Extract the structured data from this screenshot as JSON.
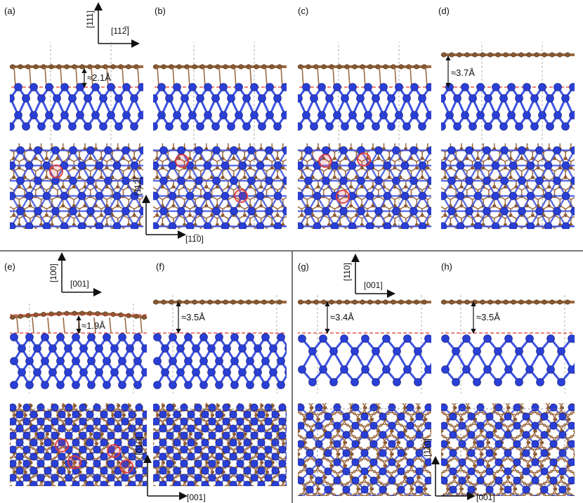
{
  "panels": [
    {
      "id": "a",
      "label": "(a)",
      "gap_label": "≈2.1Å",
      "flat": false,
      "sites": [
        [
          80,
          244
        ]
      ]
    },
    {
      "id": "b",
      "label": "(b)",
      "gap_label": "",
      "flat": false,
      "sites": [
        [
          259,
          229
        ],
        [
          343,
          279
        ]
      ]
    },
    {
      "id": "c",
      "label": "(c)",
      "gap_label": "",
      "flat": false,
      "sites": [
        [
          463,
          229
        ],
        [
          518,
          227
        ],
        [
          488,
          280
        ]
      ]
    },
    {
      "id": "d",
      "label": "(d)",
      "gap_label": "≈3.7Å",
      "flat": true,
      "sites": []
    },
    {
      "id": "e",
      "label": "(e)",
      "gap_label": "≈1.9Å",
      "flat": false,
      "sites": [
        [
          88,
          634
        ],
        [
          106,
          658
        ],
        [
          162,
          642
        ],
        [
          180,
          664
        ]
      ]
    },
    {
      "id": "f",
      "label": "(f)",
      "gap_label": "≈3.5Å",
      "flat": true,
      "sites": []
    },
    {
      "id": "g",
      "label": "(g)",
      "gap_label": "≈3.4Å",
      "flat": true,
      "sites": []
    },
    {
      "id": "h",
      "label": "(h)",
      "gap_label": "≈3.5Å",
      "flat": true,
      "sites": []
    }
  ],
  "axes": {
    "top_vertical": "[111]",
    "top_horizontal": "[112̅]",
    "mid_vertical": "[112̅]",
    "mid_horizontal": "[11̅0]",
    "e_vertical": "[100]",
    "e_horizontal": "[001]",
    "f_vertical": "[010]",
    "f_horizontal": "[001]",
    "g_vertical": "[110]",
    "g_horizontal": "[001]",
    "h_vertical": "[11̅0]",
    "h_horizontal": "[001]"
  },
  "colors": {
    "substrate": "#2a3fd6",
    "substrate_bond": "#3d52e0",
    "carbon": "#8a5a33",
    "carbon_bond": "#9c6b42",
    "interface_line": "#e0332f",
    "highlight": "#e23b3b",
    "divider": "#777777"
  }
}
